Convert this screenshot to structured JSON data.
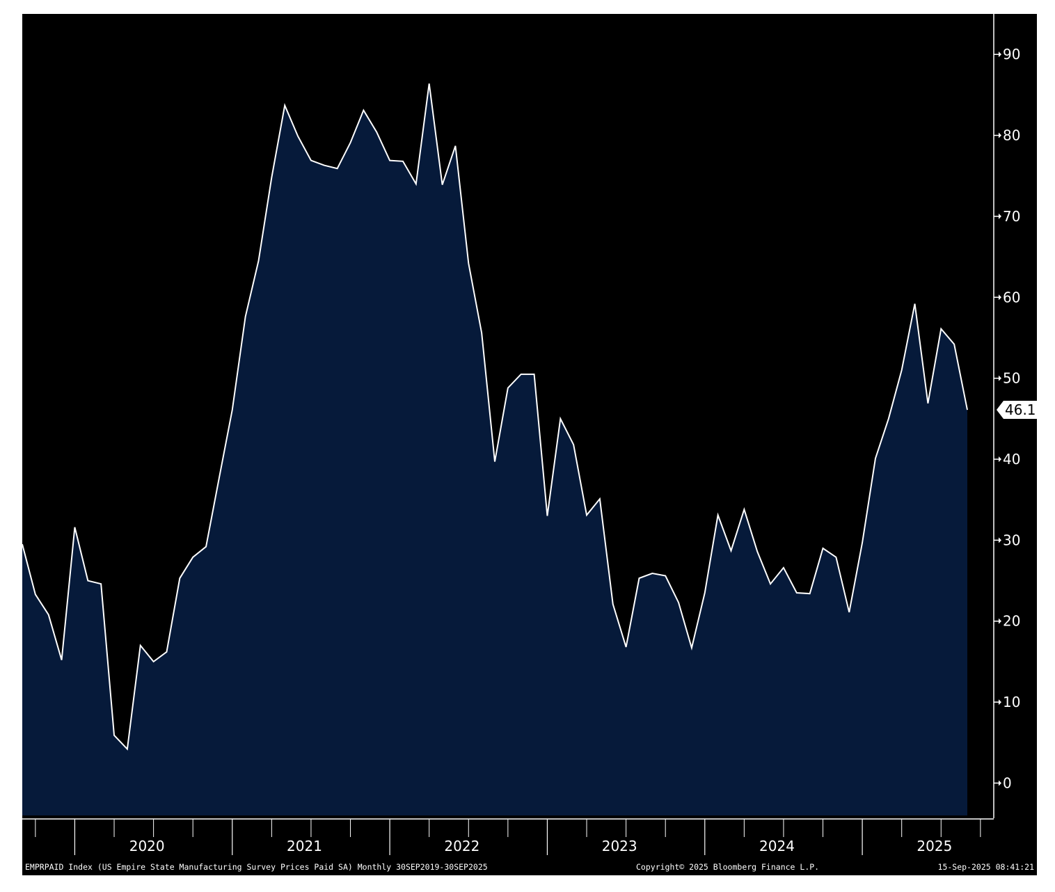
{
  "footer": {
    "ticker": "EMPRPAID Index (US Empire State Manufacturing Survey Prices Paid SA)  Monthly 30SEP2019-30SEP2025",
    "copyright": "Copyright© 2025 Bloomberg Finance L.P.",
    "timestamp": "15-Sep-2025 08:41:21"
  },
  "colors": {
    "background": "#000000",
    "area_fill": "#061a3a",
    "line": "#ffffff"
  },
  "chart_data": {
    "type": "area",
    "title": "",
    "xlabel": "",
    "ylabel": "",
    "x_start": "2019-09",
    "x_end": "2025-09",
    "frequency": "monthly",
    "ylim": [
      -4,
      95
    ],
    "y_ticks": [
      0,
      10,
      20,
      30,
      40,
      50,
      60,
      70,
      80,
      90
    ],
    "x_year_labels": [
      "2020",
      "2021",
      "2022",
      "2023",
      "2024",
      "2025"
    ],
    "y_axis_side": "right",
    "grid": false,
    "last_value_label": "46.1",
    "series": [
      {
        "values": [
          29.5,
          23.3,
          20.8,
          15.2,
          31.6,
          25.0,
          24.6,
          5.9,
          4.2,
          17.0,
          15.0,
          16.2,
          25.3,
          27.9,
          29.2,
          37.7,
          46.1,
          57.6,
          64.5,
          74.8,
          83.7,
          79.9,
          76.9,
          76.3,
          75.9,
          79.1,
          83.1,
          80.4,
          76.9,
          76.8,
          74.0,
          86.4,
          73.9,
          78.7,
          64.2,
          55.6,
          39.7,
          48.8,
          50.5,
          50.5,
          33.0,
          45.0,
          41.8,
          33.1,
          35.1,
          22.1,
          16.8,
          25.3,
          25.9,
          25.6,
          22.3,
          16.7,
          23.5,
          33.1,
          28.7,
          33.8,
          28.6,
          24.6,
          26.6,
          23.5,
          23.4,
          29.0,
          27.9,
          21.1,
          29.7,
          40.1,
          45.0,
          51.0,
          59.2,
          46.9,
          56.1,
          54.2,
          46.1
        ]
      }
    ]
  }
}
